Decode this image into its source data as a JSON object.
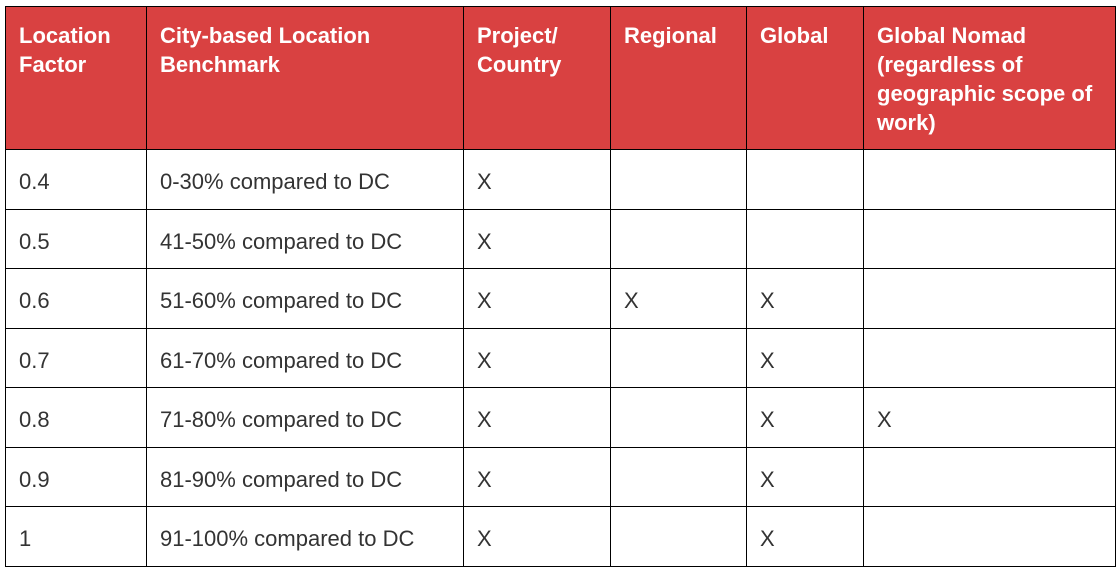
{
  "table": {
    "header_color": "#d94141",
    "headers": [
      "Location Factor",
      "City-based Location Benchmark",
      "Project/ Country",
      "Regional",
      "Global",
      "Global Nomad (regardless of geographic scope of work)"
    ],
    "rows": [
      [
        "0.4",
        "0-30% compared to DC",
        "X",
        "",
        "",
        ""
      ],
      [
        "0.5",
        "41-50% compared to DC",
        "X",
        "",
        "",
        ""
      ],
      [
        "0.6",
        "51-60% compared to DC",
        "X",
        "X",
        "X",
        ""
      ],
      [
        "0.7",
        "61-70% compared to DC",
        "X",
        "",
        "X",
        ""
      ],
      [
        "0.8",
        "71-80% compared to DC",
        "X",
        "",
        "X",
        "X"
      ],
      [
        "0.9",
        "81-90% compared to DC",
        "X",
        "",
        "X",
        ""
      ],
      [
        "1",
        "91-100% compared to DC",
        "X",
        "",
        "X",
        ""
      ]
    ]
  }
}
